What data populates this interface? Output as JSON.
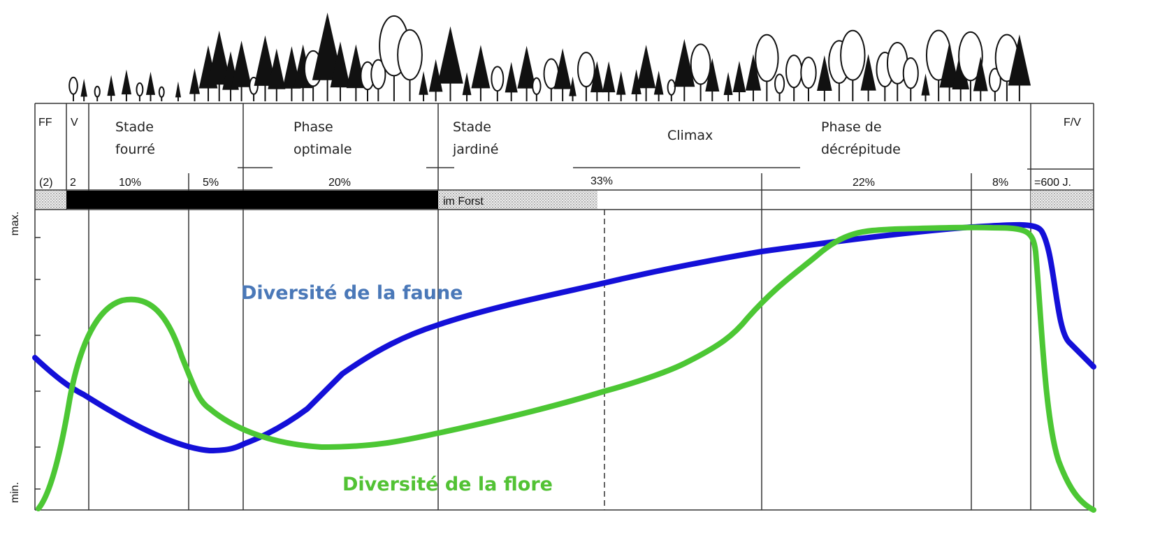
{
  "stage_row": [
    [
      "FF"
    ],
    [
      "V"
    ],
    [
      "Stade",
      "fourré"
    ],
    [
      "Phase",
      "optimale"
    ],
    [
      "Stade",
      "jardiné"
    ],
    [
      "Climax"
    ],
    [
      "Phase de",
      "décrépitude"
    ],
    [
      "F/V"
    ]
  ],
  "share_row": [
    "(2)",
    "2",
    "10%",
    "5%",
    "20%",
    "33%",
    "22%",
    "8%",
    "=600 J."
  ],
  "forest_label": "im Forst",
  "axis": {
    "max": "max.",
    "min": "min."
  },
  "curves": [
    {
      "label": "Diversité de la faune"
    },
    {
      "label": "Diversité de la flore"
    }
  ]
}
